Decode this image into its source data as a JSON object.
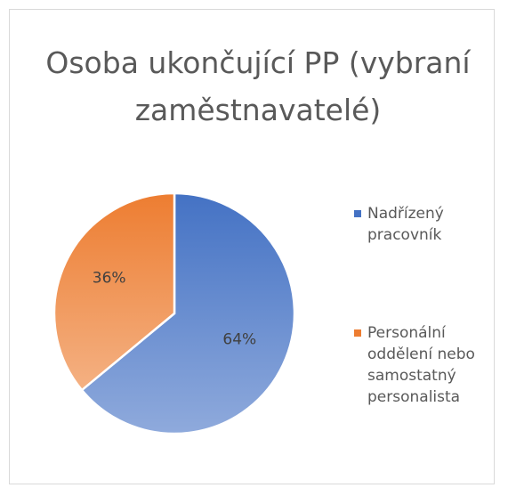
{
  "chart_data": {
    "type": "pie",
    "title": "Osoba ukončující PP (vybraní zaměstnavatelé)",
    "categories": [
      "Nadřízený pracovník",
      "Personální oddělení nebo samostatný personalista"
    ],
    "values": [
      64,
      36
    ],
    "value_labels": [
      "64%",
      "36%"
    ],
    "colors": [
      "#4472c4",
      "#ed7d31"
    ],
    "legend": "right"
  }
}
